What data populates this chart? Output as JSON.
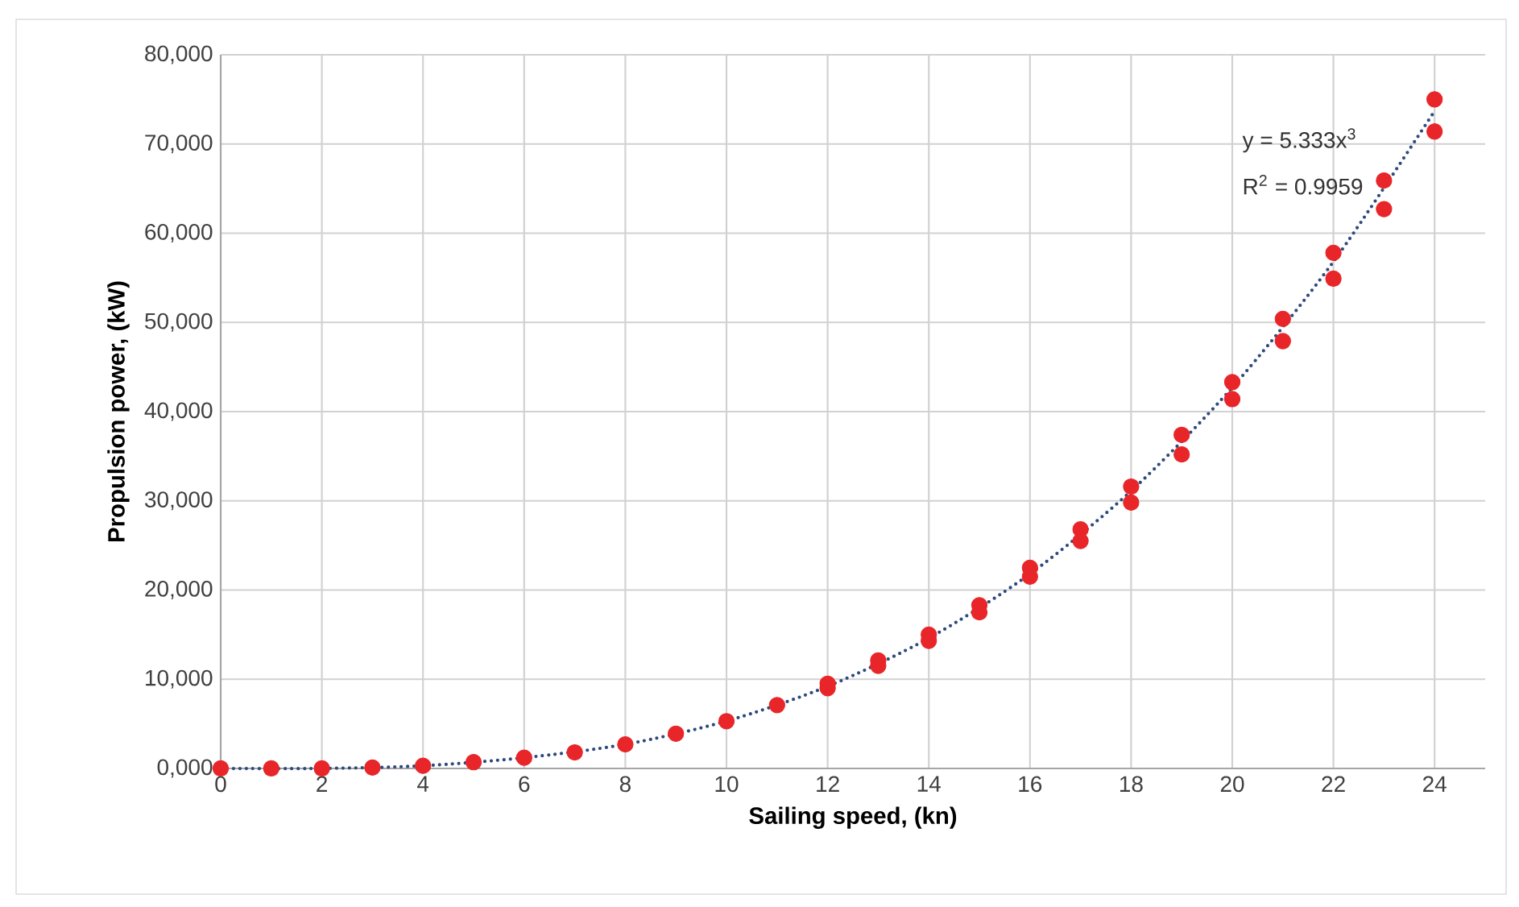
{
  "chart_data": {
    "type": "scatter",
    "xlabel": "Sailing speed,  (kn)",
    "ylabel": "Propulsion power,  (kW)",
    "annotations": [
      "y = 5.333x$^{3}$",
      "R$^{2}$ = 0.9959"
    ],
    "xlim": [
      0,
      25
    ],
    "xticks": [
      0,
      2,
      4,
      6,
      8,
      10,
      12,
      14,
      16,
      18,
      20,
      22,
      24
    ],
    "ylim": [
      0,
      80000
    ],
    "yticks": [
      {
        "value": 0,
        "label": "0,000"
      },
      {
        "value": 10000,
        "label": "10,000"
      },
      {
        "value": 20000,
        "label": "20,000"
      },
      {
        "value": 30000,
        "label": "30,000"
      },
      {
        "value": 40000,
        "label": "40,000"
      },
      {
        "value": 50000,
        "label": "50,000"
      },
      {
        "value": 60000,
        "label": "60,000"
      },
      {
        "value": 70000,
        "label": "70,000"
      },
      {
        "value": 80000,
        "label": "80,000"
      }
    ],
    "grid": true,
    "series": [
      {
        "color": "#e8262a",
        "marker": "circle",
        "x": [
          0,
          1,
          2,
          3,
          4,
          5,
          6,
          7,
          8,
          9,
          10,
          11,
          12,
          12,
          13,
          13,
          14,
          14,
          15,
          15,
          16,
          16,
          17,
          17,
          18,
          18,
          19,
          19,
          20,
          20,
          21,
          21,
          22,
          22,
          23,
          23,
          24,
          24
        ],
        "values": [
          0,
          0,
          0,
          100,
          300,
          700,
          1200,
          1800,
          2700,
          3900,
          5300,
          7100,
          9000,
          9500,
          11500,
          12100,
          14300,
          15000,
          17500,
          18300,
          21500,
          22500,
          25500,
          26800,
          29800,
          31600,
          35200,
          37400,
          41400,
          43300,
          47900,
          50400,
          54900,
          57800,
          62700,
          65900,
          71400,
          75000
        ]
      },
      {
        "type": "line",
        "color": "#2e4a7d",
        "marker": "none",
        "line_style": "dotted",
        "x": [
          0,
          2,
          4,
          6,
          8,
          10,
          12,
          14,
          16,
          18,
          20,
          22,
          24
        ],
        "values": [
          0,
          0,
          300,
          1200,
          2700,
          5300,
          9200,
          14600,
          21800,
          31100,
          42700,
          56800,
          73700
        ]
      }
    ]
  }
}
